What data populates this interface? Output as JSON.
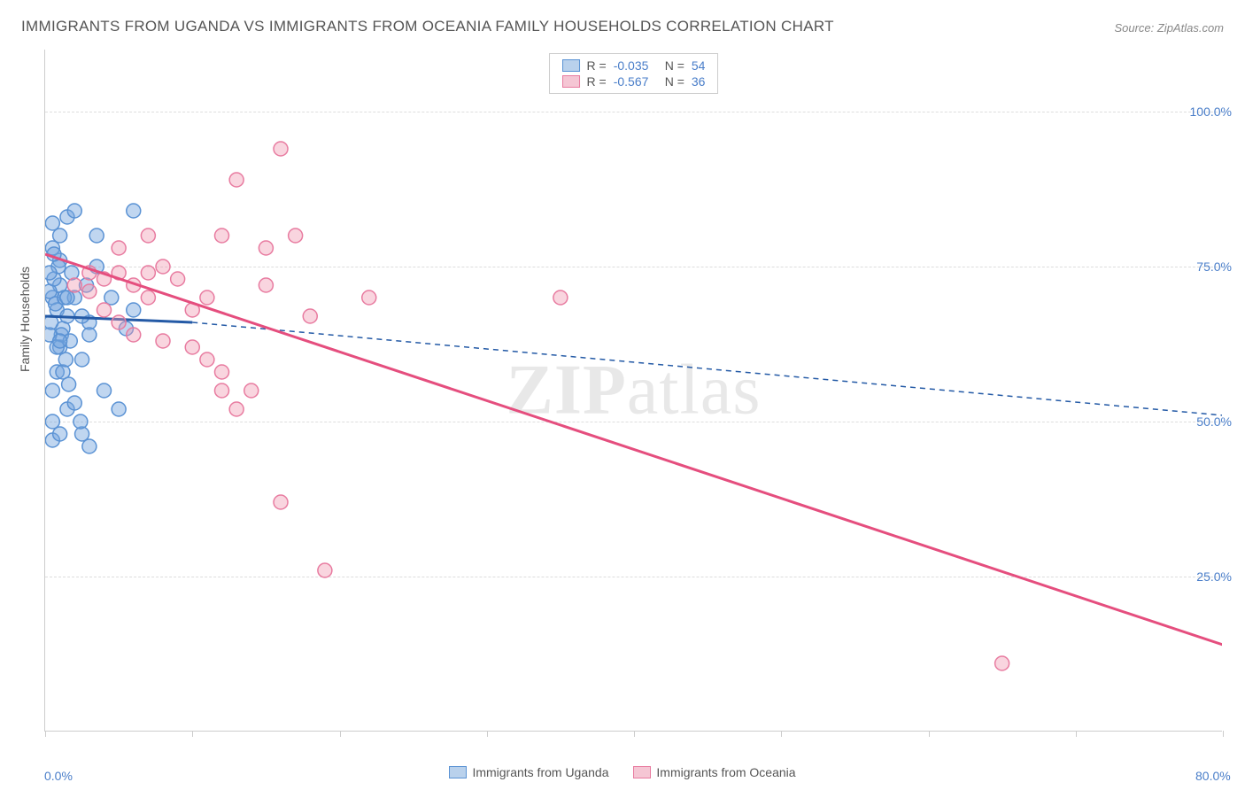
{
  "title": "IMMIGRANTS FROM UGANDA VS IMMIGRANTS FROM OCEANIA FAMILY HOUSEHOLDS CORRELATION CHART",
  "source": "Source: ZipAtlas.com",
  "watermark": {
    "bold": "ZIP",
    "light": "atlas"
  },
  "chart": {
    "type": "scatter-with-regression",
    "x_domain": [
      0,
      80
    ],
    "y_domain": [
      0,
      110
    ],
    "y_label": "Family Households",
    "y_ticks": [
      {
        "value": 25,
        "label": "25.0%"
      },
      {
        "value": 50,
        "label": "50.0%"
      },
      {
        "value": 75,
        "label": "75.0%"
      },
      {
        "value": 100,
        "label": "100.0%"
      }
    ],
    "x_ticks": [
      {
        "value": 0,
        "label": "0.0%"
      },
      {
        "value": 10,
        "label": ""
      },
      {
        "value": 20,
        "label": ""
      },
      {
        "value": 30,
        "label": ""
      },
      {
        "value": 40,
        "label": ""
      },
      {
        "value": 50,
        "label": ""
      },
      {
        "value": 60,
        "label": ""
      },
      {
        "value": 70,
        "label": ""
      },
      {
        "value": 80,
        "label": "80.0%"
      }
    ],
    "series": [
      {
        "name": "Immigrants from Uganda",
        "color_fill": "rgba(115,163,222,0.45)",
        "color_stroke": "#5a92d4",
        "swatch_fill": "#b9d1ec",
        "swatch_border": "#5a92d4",
        "R": "-0.035",
        "N": "54",
        "points": [
          [
            0.5,
            70
          ],
          [
            0.8,
            68
          ],
          [
            1,
            72
          ],
          [
            1.2,
            65
          ],
          [
            1.5,
            83
          ],
          [
            2,
            84
          ],
          [
            2.5,
            60
          ],
          [
            3,
            66
          ],
          [
            0.5,
            47
          ],
          [
            1,
            48
          ],
          [
            1.5,
            52
          ],
          [
            0.5,
            55
          ],
          [
            0.8,
            58
          ],
          [
            1,
            62
          ],
          [
            1.5,
            67
          ],
          [
            3.5,
            80
          ],
          [
            6,
            84
          ],
          [
            4,
            55
          ],
          [
            5,
            52
          ],
          [
            6,
            68
          ],
          [
            2.5,
            48
          ],
          [
            3,
            46
          ],
          [
            0.5,
            78
          ],
          [
            1,
            76
          ],
          [
            1.8,
            74
          ],
          [
            0.3,
            71
          ],
          [
            0.7,
            69
          ],
          [
            1.1,
            64
          ],
          [
            2,
            70
          ],
          [
            2.8,
            72
          ],
          [
            3.5,
            75
          ],
          [
            4.5,
            70
          ],
          [
            5.5,
            65
          ],
          [
            1,
            80
          ],
          [
            0.5,
            50
          ],
          [
            0.3,
            64
          ],
          [
            0.6,
            73
          ],
          [
            0.9,
            75
          ],
          [
            1.3,
            70
          ],
          [
            1.7,
            63
          ],
          [
            0.4,
            66
          ],
          [
            0.8,
            62
          ],
          [
            1.2,
            58
          ],
          [
            1.6,
            56
          ],
          [
            2,
            53
          ],
          [
            2.4,
            50
          ],
          [
            0.5,
            82
          ],
          [
            1.5,
            70
          ],
          [
            2.5,
            67
          ],
          [
            3,
            64
          ],
          [
            0.3,
            74
          ],
          [
            0.6,
            77
          ],
          [
            1,
            63
          ],
          [
            1.4,
            60
          ]
        ],
        "regression": {
          "x1": 0,
          "y1": 67,
          "x2": 10,
          "y2": 66,
          "dash": false,
          "color": "#245aa6",
          "width": 3
        },
        "regression_ext": {
          "x1": 10,
          "y1": 66,
          "x2": 80,
          "y2": 51,
          "dash": true,
          "color": "#245aa6",
          "width": 1.5
        }
      },
      {
        "name": "Immigrants from Oceania",
        "color_fill": "rgba(240,150,175,0.40)",
        "color_stroke": "#e87ba0",
        "swatch_fill": "#f5c6d4",
        "swatch_border": "#e87ba0",
        "R": "-0.567",
        "N": "36",
        "points": [
          [
            3,
            74
          ],
          [
            4,
            73
          ],
          [
            5,
            78
          ],
          [
            6,
            72
          ],
          [
            7,
            80
          ],
          [
            8,
            75
          ],
          [
            9,
            73
          ],
          [
            10,
            68
          ],
          [
            11,
            70
          ],
          [
            12,
            80
          ],
          [
            13,
            89
          ],
          [
            15,
            78
          ],
          [
            16,
            94
          ],
          [
            17,
            80
          ],
          [
            18,
            67
          ],
          [
            11,
            60
          ],
          [
            12,
            55
          ],
          [
            13,
            52
          ],
          [
            22,
            70
          ],
          [
            8,
            63
          ],
          [
            15,
            72
          ],
          [
            10,
            62
          ],
          [
            2,
            72
          ],
          [
            3,
            71
          ],
          [
            4,
            68
          ],
          [
            5,
            66
          ],
          [
            6,
            64
          ],
          [
            7,
            74
          ],
          [
            19,
            26
          ],
          [
            35,
            70
          ],
          [
            16,
            37
          ],
          [
            65,
            11
          ],
          [
            5,
            74
          ],
          [
            7,
            70
          ],
          [
            12,
            58
          ],
          [
            14,
            55
          ]
        ],
        "regression": {
          "x1": 0,
          "y1": 77,
          "x2": 80,
          "y2": 14,
          "dash": false,
          "color": "#e54e7e",
          "width": 3
        }
      }
    ],
    "legend_top": {
      "R_label": "R =",
      "N_label": "N =",
      "text_color": "#555555",
      "value_color": "#4a7ec9"
    },
    "marker_radius": 8,
    "background": "#ffffff",
    "grid_color": "#dddddd",
    "axis_color": "#cccccc"
  }
}
